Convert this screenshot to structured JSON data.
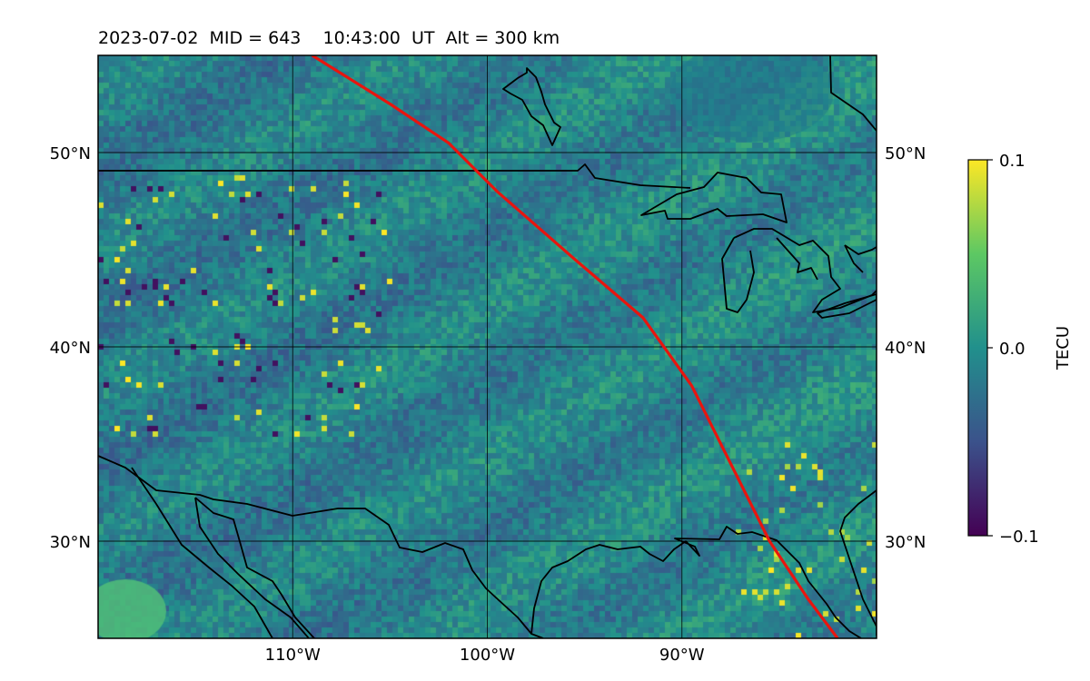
{
  "title": "2023-07-02  MID = 643    10:43:00  UT  Alt = 300 km",
  "map": {
    "lon_range": [
      -120,
      -80
    ],
    "lat_range": [
      25,
      55
    ],
    "lat_ticks": [
      {
        "value": 30,
        "label": "30°N"
      },
      {
        "value": 40,
        "label": "40°N"
      },
      {
        "value": 50,
        "label": "50°N"
      }
    ],
    "lon_ticks": [
      {
        "value": -110,
        "label": "110°W"
      },
      {
        "value": -100,
        "label": "100°W"
      },
      {
        "value": -90,
        "label": "90°W"
      }
    ],
    "gridlines": true,
    "track_color": "#e8150f",
    "track": [
      [
        -109,
        55
      ],
      [
        -105,
        52.5
      ],
      [
        -102,
        50.5
      ],
      [
        -99.5,
        48
      ],
      [
        -95.5,
        44.5
      ],
      [
        -92,
        41.5
      ],
      [
        -89.5,
        38
      ],
      [
        -87.5,
        34
      ],
      [
        -85.5,
        30
      ],
      [
        -83.5,
        27
      ],
      [
        -82,
        25
      ]
    ]
  },
  "colorbar": {
    "label": "TECU",
    "min": -0.1,
    "max": 0.1,
    "ticks": [
      {
        "value": 0.1,
        "label": "0.1"
      },
      {
        "value": 0.0,
        "label": "0.0"
      },
      {
        "value": -0.1,
        "label": "−0.1"
      }
    ],
    "colormap": [
      "#440154",
      "#3b528b",
      "#21908c",
      "#5dc863",
      "#fde725"
    ]
  }
}
